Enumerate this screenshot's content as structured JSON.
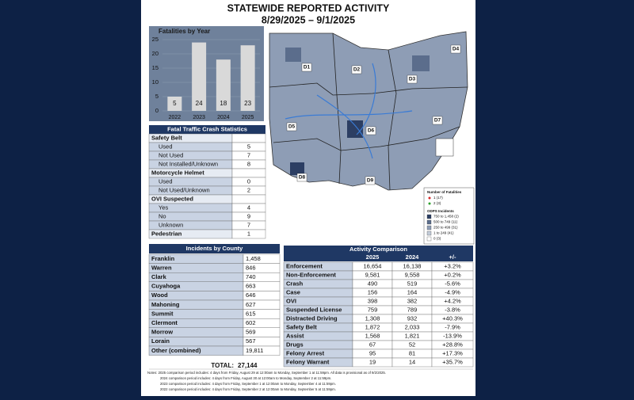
{
  "header": {
    "title": "STATEWIDE REPORTED ACTIVITY",
    "date_range": "8/29/2025 – 9/1/2025"
  },
  "chart_data": {
    "type": "bar",
    "title": "Fatalities by Year",
    "categories": [
      "2022",
      "2023",
      "2024",
      "2025"
    ],
    "values": [
      5,
      24,
      18,
      23
    ],
    "color": "#d9d9d9",
    "ylim": [
      0,
      25
    ],
    "yticks": [
      0,
      5,
      10,
      15,
      20,
      25
    ],
    "grid": true,
    "data_labels": true
  },
  "map": {
    "districts": [
      "D1",
      "D2",
      "D3",
      "D4",
      "D5",
      "D6",
      "D7",
      "D8",
      "D9"
    ],
    "legend": {
      "title": "Number of Fatalities",
      "items": [
        "1 (17)",
        "2 (3)"
      ],
      "incidents_title": "ODPS Incidents",
      "incident_items": [
        "750 to 1,458 (2)",
        "500 to 749 (11)",
        "250 to 499 (31)",
        "1 to 249 (41)",
        "0 (3)"
      ]
    }
  },
  "fatal_stats": {
    "title": "Fatal Traffic Crash Statistics",
    "groups": [
      {
        "name": "Safety Belt",
        "rows": [
          [
            "Used",
            "5"
          ],
          [
            "Not Used",
            "7"
          ],
          [
            "Not Installed/Unknown",
            "8"
          ]
        ]
      },
      {
        "name": "Motorcycle Helmet",
        "rows": [
          [
            "Used",
            "0"
          ],
          [
            "Not Used/Unknown",
            "2"
          ]
        ]
      },
      {
        "name": "OVI Suspected",
        "rows": [
          [
            "Yes",
            "4"
          ],
          [
            "No",
            "9"
          ],
          [
            "Unknown",
            "7"
          ]
        ]
      },
      {
        "name": "Pedestrian",
        "value": "1"
      }
    ]
  },
  "counties": {
    "title": "Incidents by County",
    "rows": [
      [
        "Franklin",
        "1,458"
      ],
      [
        "Warren",
        "846"
      ],
      [
        "Clark",
        "740"
      ],
      [
        "Cuyahoga",
        "663"
      ],
      [
        "Wood",
        "646"
      ],
      [
        "Mahoning",
        "627"
      ],
      [
        "Summit",
        "615"
      ],
      [
        "Clermont",
        "602"
      ],
      [
        "Morrow",
        "569"
      ],
      [
        "Lorain",
        "567"
      ],
      [
        "Other (combined)",
        "19,811"
      ]
    ],
    "total_label": "TOTAL:",
    "total": "27,144"
  },
  "activity": {
    "title": "Activity Comparison",
    "columns": [
      "2025",
      "2024",
      "+/-"
    ],
    "rows": [
      [
        "Enforcement",
        "16,654",
        "16,138",
        "+3.2%"
      ],
      [
        "Non-Enforcement",
        "9,581",
        "9,558",
        "+0.2%"
      ],
      [
        "Crash",
        "490",
        "519",
        "-5.6%"
      ],
      [
        "Case",
        "156",
        "164",
        "-4.9%"
      ],
      [
        "OVI",
        "398",
        "382",
        "+4.2%"
      ],
      [
        "Suspended License",
        "759",
        "789",
        "-3.8%"
      ],
      [
        "Distracted Driving",
        "1,308",
        "932",
        "+40.3%"
      ],
      [
        "Safety Belt",
        "1,872",
        "2,033",
        "-7.9%"
      ],
      [
        "Assist",
        "1,568",
        "1,821",
        "-13.9%"
      ],
      [
        "Drugs",
        "67",
        "52",
        "+28.8%"
      ],
      [
        "Felony Arrest",
        "95",
        "81",
        "+17.3%"
      ],
      [
        "Felony Warrant",
        "19",
        "14",
        "+35.7%"
      ]
    ]
  },
  "notes": [
    "Notes: 2025 comparison period includes: 4 days from Friday, August 29 at 12:00am to Monday, September 1 at 11:59pm. All data is provisional as of 9/2/2025.",
    "2024 comparison period includes: 4 days from Friday, August 30 at 12:00am to Monday, September 2 at 11:59pm.",
    "2023 comparison period includes: 4 days from Friday, September 1 at 12:00am to Monday, September 4 at 11:59pm.",
    "2022 comparison period includes: 4 days from Friday, September 2 at 12:00am to Monday, September 5 at 11:59pm."
  ]
}
